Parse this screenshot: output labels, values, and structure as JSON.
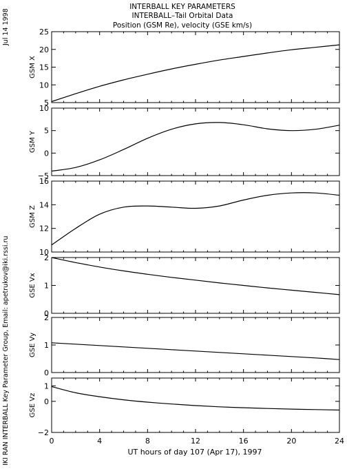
{
  "titles": {
    "line1": "INTERBALL KEY PARAMETERS",
    "line2": "INTERBALL–Tail Orbital Data",
    "line3": "Position (GSM Re), velocity (GSE km/s)"
  },
  "side": {
    "date": "Jul 14 1998",
    "credit": "IKI RAN INTERBALL Key Parameter Group, Email: apetrukov@iki.rssi.ru"
  },
  "chart_data": {
    "type": "line",
    "xlabel": "UT hours of day 107 (Apr 17), 1997",
    "xlim": [
      0,
      24
    ],
    "xticks": [
      "0",
      "4",
      "8",
      "12",
      "16",
      "20",
      "24"
    ],
    "x": [
      0,
      2,
      4,
      6,
      8,
      10,
      12,
      14,
      16,
      18,
      20,
      22,
      24
    ],
    "panels": [
      {
        "ylabel": "GSM X",
        "ylim": [
          5,
          25
        ],
        "yticks": [
          "5",
          "10",
          "15",
          "20",
          "25"
        ],
        "values": [
          5.3,
          7.5,
          9.6,
          11.4,
          13.0,
          14.5,
          15.8,
          17.0,
          18.0,
          19.0,
          19.9,
          20.6,
          21.3
        ]
      },
      {
        "ylabel": "GSM Y",
        "ylim": [
          -5,
          10
        ],
        "yticks": [
          "−5",
          "0",
          "5",
          "10"
        ],
        "values": [
          -4.0,
          -3.2,
          -1.5,
          0.8,
          3.3,
          5.3,
          6.5,
          6.8,
          6.3,
          5.4,
          5.0,
          5.3,
          6.2
        ]
      },
      {
        "ylabel": "GSM Z",
        "ylim": [
          10,
          16
        ],
        "yticks": [
          "10",
          "12",
          "14",
          "16"
        ],
        "values": [
          10.6,
          12.0,
          13.2,
          13.8,
          13.9,
          13.8,
          13.7,
          13.9,
          14.4,
          14.8,
          15.0,
          15.0,
          14.8
        ]
      },
      {
        "ylabel": "GSE Vx",
        "ylim": [
          0,
          2
        ],
        "yticks": [
          "0",
          "1",
          "2"
        ],
        "values": [
          2.0,
          1.82,
          1.66,
          1.52,
          1.4,
          1.29,
          1.19,
          1.09,
          1.0,
          0.91,
          0.83,
          0.75,
          0.67
        ]
      },
      {
        "ylabel": "GSE Vy",
        "ylim": [
          0,
          2
        ],
        "yticks": [
          "0",
          "1",
          "2"
        ],
        "values": [
          1.08,
          1.03,
          0.98,
          0.93,
          0.88,
          0.83,
          0.78,
          0.73,
          0.68,
          0.63,
          0.58,
          0.53,
          0.47
        ]
      },
      {
        "ylabel": "GSE Vz",
        "ylim": [
          -2,
          1.5
        ],
        "yticks": [
          "−2",
          "0",
          "1"
        ],
        "values": [
          0.95,
          0.55,
          0.3,
          0.1,
          -0.05,
          -0.17,
          -0.27,
          -0.35,
          -0.41,
          -0.46,
          -0.5,
          -0.53,
          -0.56
        ]
      }
    ]
  }
}
